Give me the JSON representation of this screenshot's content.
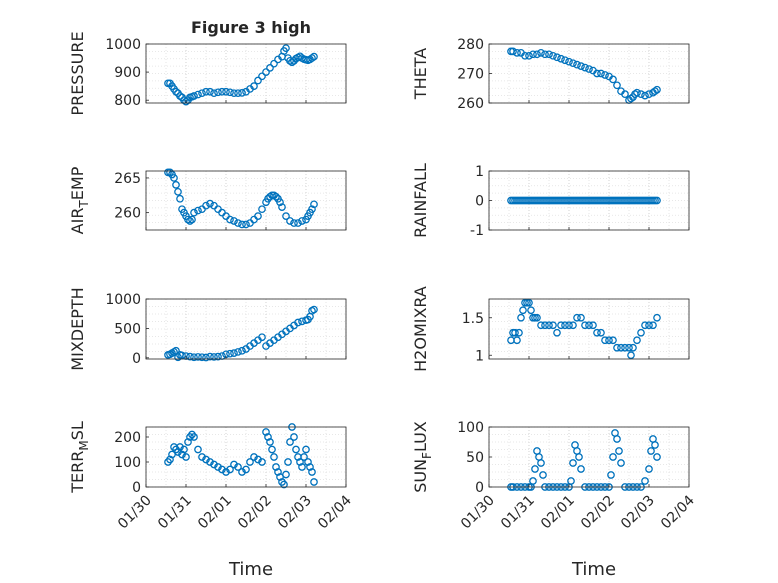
{
  "figure": {
    "title": "Figure 3 high",
    "xlabel": "Time",
    "xticks": [
      "01/30",
      "01/31",
      "02/01",
      "02/02",
      "02/03",
      "02/04"
    ],
    "xlim": [
      0,
      5
    ],
    "marker_color": "#0072BD",
    "grid": "dotted, major and minor"
  },
  "chart_data": [
    {
      "type": "scatter",
      "ylabel": "PRESSURE",
      "ylim": [
        790,
        1000
      ],
      "yticks": [
        800,
        900,
        1000
      ],
      "series": [
        {
          "x": [
            0.55,
            0.6,
            0.65,
            0.7,
            0.75,
            0.8,
            0.85,
            0.9,
            0.95,
            1.0,
            1.05,
            1.1,
            1.15,
            1.2,
            1.3,
            1.4,
            1.5,
            1.6,
            1.7,
            1.8,
            1.9,
            2.0,
            2.1,
            2.2,
            2.3,
            2.4,
            2.5,
            2.6,
            2.7,
            2.8,
            2.9,
            3.0,
            3.1,
            3.2,
            3.3,
            3.4,
            3.45,
            3.5,
            3.55,
            3.6,
            3.65,
            3.7,
            3.75,
            3.8,
            3.85,
            3.9,
            3.95,
            4.0,
            4.05,
            4.1,
            4.15,
            4.2
          ],
          "y": [
            860,
            860,
            850,
            840,
            830,
            825,
            815,
            810,
            800,
            795,
            800,
            810,
            812,
            815,
            820,
            825,
            830,
            830,
            825,
            828,
            830,
            830,
            828,
            825,
            825,
            826,
            830,
            840,
            850,
            870,
            885,
            900,
            915,
            930,
            945,
            955,
            975,
            985,
            950,
            940,
            935,
            940,
            948,
            952,
            956,
            950,
            946,
            944,
            942,
            945,
            950,
            955
          ]
        }
      ]
    },
    {
      "type": "scatter",
      "ylabel": "THETA",
      "ylim": [
        260,
        280
      ],
      "yticks": [
        260,
        270,
        280
      ],
      "series": [
        {
          "x": [
            0.55,
            0.6,
            0.7,
            0.8,
            0.9,
            1.0,
            1.1,
            1.2,
            1.3,
            1.4,
            1.5,
            1.6,
            1.7,
            1.8,
            1.9,
            2.0,
            2.1,
            2.2,
            2.3,
            2.4,
            2.5,
            2.6,
            2.7,
            2.8,
            2.9,
            3.0,
            3.1,
            3.2,
            3.3,
            3.4,
            3.5,
            3.55,
            3.6,
            3.65,
            3.7,
            3.8,
            3.9,
            4.0,
            4.1,
            4.15,
            4.2
          ],
          "y": [
            277.5,
            277.5,
            277,
            277,
            276,
            276,
            276.5,
            276.5,
            277,
            276.5,
            276.5,
            276,
            275.5,
            275,
            274.5,
            274,
            273.5,
            273,
            272.5,
            272,
            271.5,
            271,
            270,
            270,
            269.5,
            269,
            268,
            266,
            264,
            263,
            261,
            261.5,
            262,
            263,
            263.5,
            263,
            262.5,
            263,
            263.5,
            264,
            264.5
          ]
        }
      ]
    },
    {
      "type": "scatter",
      "ylabel": "AIR_TEMP",
      "ylim": [
        257.5,
        266
      ],
      "yticks": [
        260,
        265
      ],
      "series": [
        {
          "x": [
            0.55,
            0.6,
            0.65,
            0.7,
            0.75,
            0.8,
            0.85,
            0.9,
            0.95,
            1.0,
            1.05,
            1.1,
            1.15,
            1.2,
            1.3,
            1.4,
            1.5,
            1.6,
            1.7,
            1.8,
            1.9,
            2.0,
            2.1,
            2.2,
            2.3,
            2.4,
            2.5,
            2.6,
            2.7,
            2.8,
            2.9,
            3.0,
            3.05,
            3.1,
            3.15,
            3.2,
            3.25,
            3.3,
            3.35,
            3.4,
            3.5,
            3.6,
            3.7,
            3.8,
            3.9,
            4.0,
            4.05,
            4.1,
            4.15,
            4.2
          ],
          "y": [
            265.8,
            265.8,
            265.5,
            265,
            264,
            263,
            262,
            260.5,
            260,
            259.5,
            259,
            258.8,
            259,
            260,
            260.3,
            260.5,
            261,
            261.3,
            261,
            260.5,
            260,
            259.5,
            259,
            258.8,
            258.5,
            258.3,
            258.3,
            258.5,
            259,
            259.5,
            260.5,
            261.5,
            262,
            262.3,
            262.5,
            262.5,
            262.3,
            262,
            261.5,
            260.8,
            259.5,
            258.8,
            258.5,
            258.5,
            258.8,
            259,
            259.5,
            260,
            260.5,
            261.2
          ]
        }
      ]
    },
    {
      "type": "scatter",
      "ylabel": "RAINFALL",
      "ylim": [
        -1,
        1
      ],
      "yticks": [
        -1,
        0,
        1
      ],
      "series": [
        {
          "x": [
            0.55,
            0.6,
            0.65,
            0.7,
            0.75,
            0.8,
            0.85,
            0.9,
            0.95,
            1.0,
            1.05,
            1.1,
            1.15,
            1.2,
            1.25,
            1.3,
            1.35,
            1.4,
            1.45,
            1.5,
            1.55,
            1.6,
            1.65,
            1.7,
            1.75,
            1.8,
            1.85,
            1.9,
            1.95,
            2.0,
            2.05,
            2.1,
            2.15,
            2.2,
            2.25,
            2.3,
            2.35,
            2.4,
            2.45,
            2.5,
            2.55,
            2.6,
            2.65,
            2.7,
            2.75,
            2.8,
            2.85,
            2.9,
            2.95,
            3.0,
            3.05,
            3.1,
            3.15,
            3.2,
            3.25,
            3.3,
            3.35,
            3.4,
            3.45,
            3.5,
            3.55,
            3.6,
            3.65,
            3.7,
            3.75,
            3.8,
            3.85,
            3.9,
            3.95,
            4.0,
            4.05,
            4.1,
            4.15,
            4.2
          ],
          "y": [
            0,
            0,
            0,
            0,
            0,
            0,
            0,
            0,
            0,
            0,
            0,
            0,
            0,
            0,
            0,
            0,
            0,
            0,
            0,
            0,
            0,
            0,
            0,
            0,
            0,
            0,
            0,
            0,
            0,
            0,
            0,
            0,
            0,
            0,
            0,
            0,
            0,
            0,
            0,
            0,
            0,
            0,
            0,
            0,
            0,
            0,
            0,
            0,
            0,
            0,
            0,
            0,
            0,
            0,
            0,
            0,
            0,
            0,
            0,
            0,
            0,
            0,
            0,
            0,
            0,
            0,
            0,
            0,
            0,
            0,
            0,
            0,
            0,
            0
          ]
        }
      ]
    },
    {
      "type": "scatter",
      "ylabel": "MIXDEPTH",
      "ylim": [
        -20,
        1000
      ],
      "yticks": [
        0,
        500,
        1000
      ],
      "series": [
        {
          "x": [
            0.55,
            0.6,
            0.65,
            0.7,
            0.75,
            0.8,
            0.85,
            0.9,
            1.0,
            1.1,
            1.2,
            1.3,
            1.4,
            1.5,
            1.6,
            1.7,
            1.8,
            1.9,
            2.0,
            2.1,
            2.2,
            2.3,
            2.4,
            2.5,
            2.6,
            2.7,
            2.8,
            2.9,
            3.0,
            3.1,
            3.2,
            3.3,
            3.4,
            3.5,
            3.6,
            3.7,
            3.8,
            3.9,
            4.0,
            4.05,
            4.1,
            4.15,
            4.2
          ],
          "y": [
            50,
            60,
            80,
            100,
            120,
            10,
            50,
            40,
            30,
            20,
            10,
            15,
            10,
            5,
            20,
            15,
            20,
            30,
            60,
            70,
            80,
            100,
            120,
            150,
            200,
            250,
            300,
            350,
            200,
            250,
            300,
            350,
            400,
            450,
            500,
            550,
            600,
            620,
            640,
            650,
            700,
            800,
            820
          ]
        }
      ]
    },
    {
      "type": "scatter",
      "ylabel": "H2OMIXRA",
      "ylim": [
        0.95,
        1.75
      ],
      "yticks": [
        1,
        1.5
      ],
      "series": [
        {
          "x": [
            0.55,
            0.6,
            0.65,
            0.7,
            0.75,
            0.8,
            0.85,
            0.9,
            0.95,
            1.0,
            1.05,
            1.1,
            1.15,
            1.2,
            1.3,
            1.4,
            1.5,
            1.6,
            1.7,
            1.8,
            1.9,
            2.0,
            2.1,
            2.2,
            2.3,
            2.4,
            2.5,
            2.6,
            2.7,
            2.8,
            2.9,
            3.0,
            3.1,
            3.2,
            3.3,
            3.4,
            3.5,
            3.55,
            3.6,
            3.7,
            3.8,
            3.9,
            4.0,
            4.1,
            4.2
          ],
          "y": [
            1.2,
            1.3,
            1.3,
            1.2,
            1.3,
            1.5,
            1.6,
            1.7,
            1.7,
            1.7,
            1.6,
            1.5,
            1.5,
            1.5,
            1.4,
            1.4,
            1.4,
            1.4,
            1.3,
            1.4,
            1.4,
            1.4,
            1.4,
            1.5,
            1.5,
            1.4,
            1.4,
            1.4,
            1.3,
            1.3,
            1.2,
            1.2,
            1.2,
            1.1,
            1.1,
            1.1,
            1.1,
            1.0,
            1.1,
            1.2,
            1.3,
            1.4,
            1.4,
            1.4,
            1.5
          ]
        }
      ]
    },
    {
      "type": "scatter",
      "ylabel": "TERR_MSL",
      "ylim": [
        0,
        240
      ],
      "yticks": [
        0,
        100,
        200
      ],
      "series": [
        {
          "x": [
            0.55,
            0.6,
            0.65,
            0.7,
            0.75,
            0.8,
            0.85,
            0.9,
            0.95,
            1.0,
            1.05,
            1.1,
            1.15,
            1.2,
            1.3,
            1.4,
            1.5,
            1.6,
            1.7,
            1.8,
            1.9,
            2.0,
            2.1,
            2.2,
            2.3,
            2.4,
            2.5,
            2.6,
            2.7,
            2.8,
            2.9,
            3.0,
            3.05,
            3.1,
            3.15,
            3.2,
            3.25,
            3.3,
            3.35,
            3.4,
            3.45,
            3.5,
            3.55,
            3.6,
            3.65,
            3.7,
            3.75,
            3.8,
            3.85,
            3.9,
            3.95,
            4.0,
            4.05,
            4.1,
            4.15,
            4.2
          ],
          "y": [
            100,
            110,
            130,
            160,
            150,
            140,
            160,
            130,
            150,
            120,
            180,
            200,
            210,
            200,
            150,
            120,
            110,
            100,
            90,
            80,
            70,
            60,
            70,
            90,
            80,
            60,
            70,
            100,
            120,
            110,
            100,
            220,
            200,
            180,
            150,
            120,
            80,
            60,
            40,
            20,
            10,
            50,
            100,
            180,
            240,
            200,
            150,
            120,
            100,
            80,
            120,
            150,
            100,
            80,
            60,
            20
          ]
        }
      ]
    },
    {
      "type": "scatter",
      "ylabel": "SUN_FLUX",
      "ylim": [
        0,
        100
      ],
      "yticks": [
        0,
        50,
        100
      ],
      "series": [
        {
          "x": [
            0.55,
            0.6,
            0.7,
            0.8,
            0.9,
            1.0,
            1.05,
            1.1,
            1.15,
            1.2,
            1.25,
            1.3,
            1.35,
            1.4,
            1.5,
            1.6,
            1.7,
            1.8,
            1.9,
            2.0,
            2.05,
            2.1,
            2.15,
            2.2,
            2.25,
            2.3,
            2.4,
            2.5,
            2.6,
            2.7,
            2.8,
            2.9,
            3.0,
            3.05,
            3.1,
            3.15,
            3.2,
            3.25,
            3.3,
            3.4,
            3.5,
            3.6,
            3.7,
            3.8,
            3.9,
            4.0,
            4.05,
            4.1,
            4.15,
            4.2
          ],
          "y": [
            0,
            0,
            0,
            0,
            0,
            0,
            0,
            10,
            30,
            60,
            50,
            40,
            20,
            0,
            0,
            0,
            0,
            0,
            0,
            0,
            10,
            40,
            70,
            60,
            50,
            30,
            0,
            0,
            0,
            0,
            0,
            0,
            0,
            20,
            50,
            90,
            80,
            60,
            40,
            0,
            0,
            0,
            0,
            0,
            10,
            30,
            60,
            80,
            70,
            50
          ]
        }
      ]
    }
  ]
}
